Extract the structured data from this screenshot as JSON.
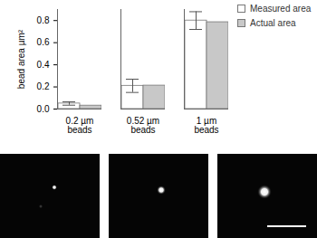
{
  "chart_data": {
    "type": "bar",
    "y_label": "bead area µm²",
    "categories": [
      "0.2 µm beads",
      "0.52 µm beads",
      "1 µm beads"
    ],
    "series": [
      {
        "name": "Measured area",
        "color": "#ffffff",
        "values": [
          0.05,
          0.21,
          0.8
        ],
        "errors": [
          0.015,
          0.06,
          0.08
        ]
      },
      {
        "name": "Actual area",
        "color": "#c8c8c8",
        "values": [
          0.031,
          0.212,
          0.785
        ]
      }
    ],
    "ylim": [
      0,
      0.9
    ],
    "yticks": [
      0,
      0.2,
      0.4,
      0.6,
      0.8
    ],
    "grid": false,
    "legend": "top-right"
  }
}
